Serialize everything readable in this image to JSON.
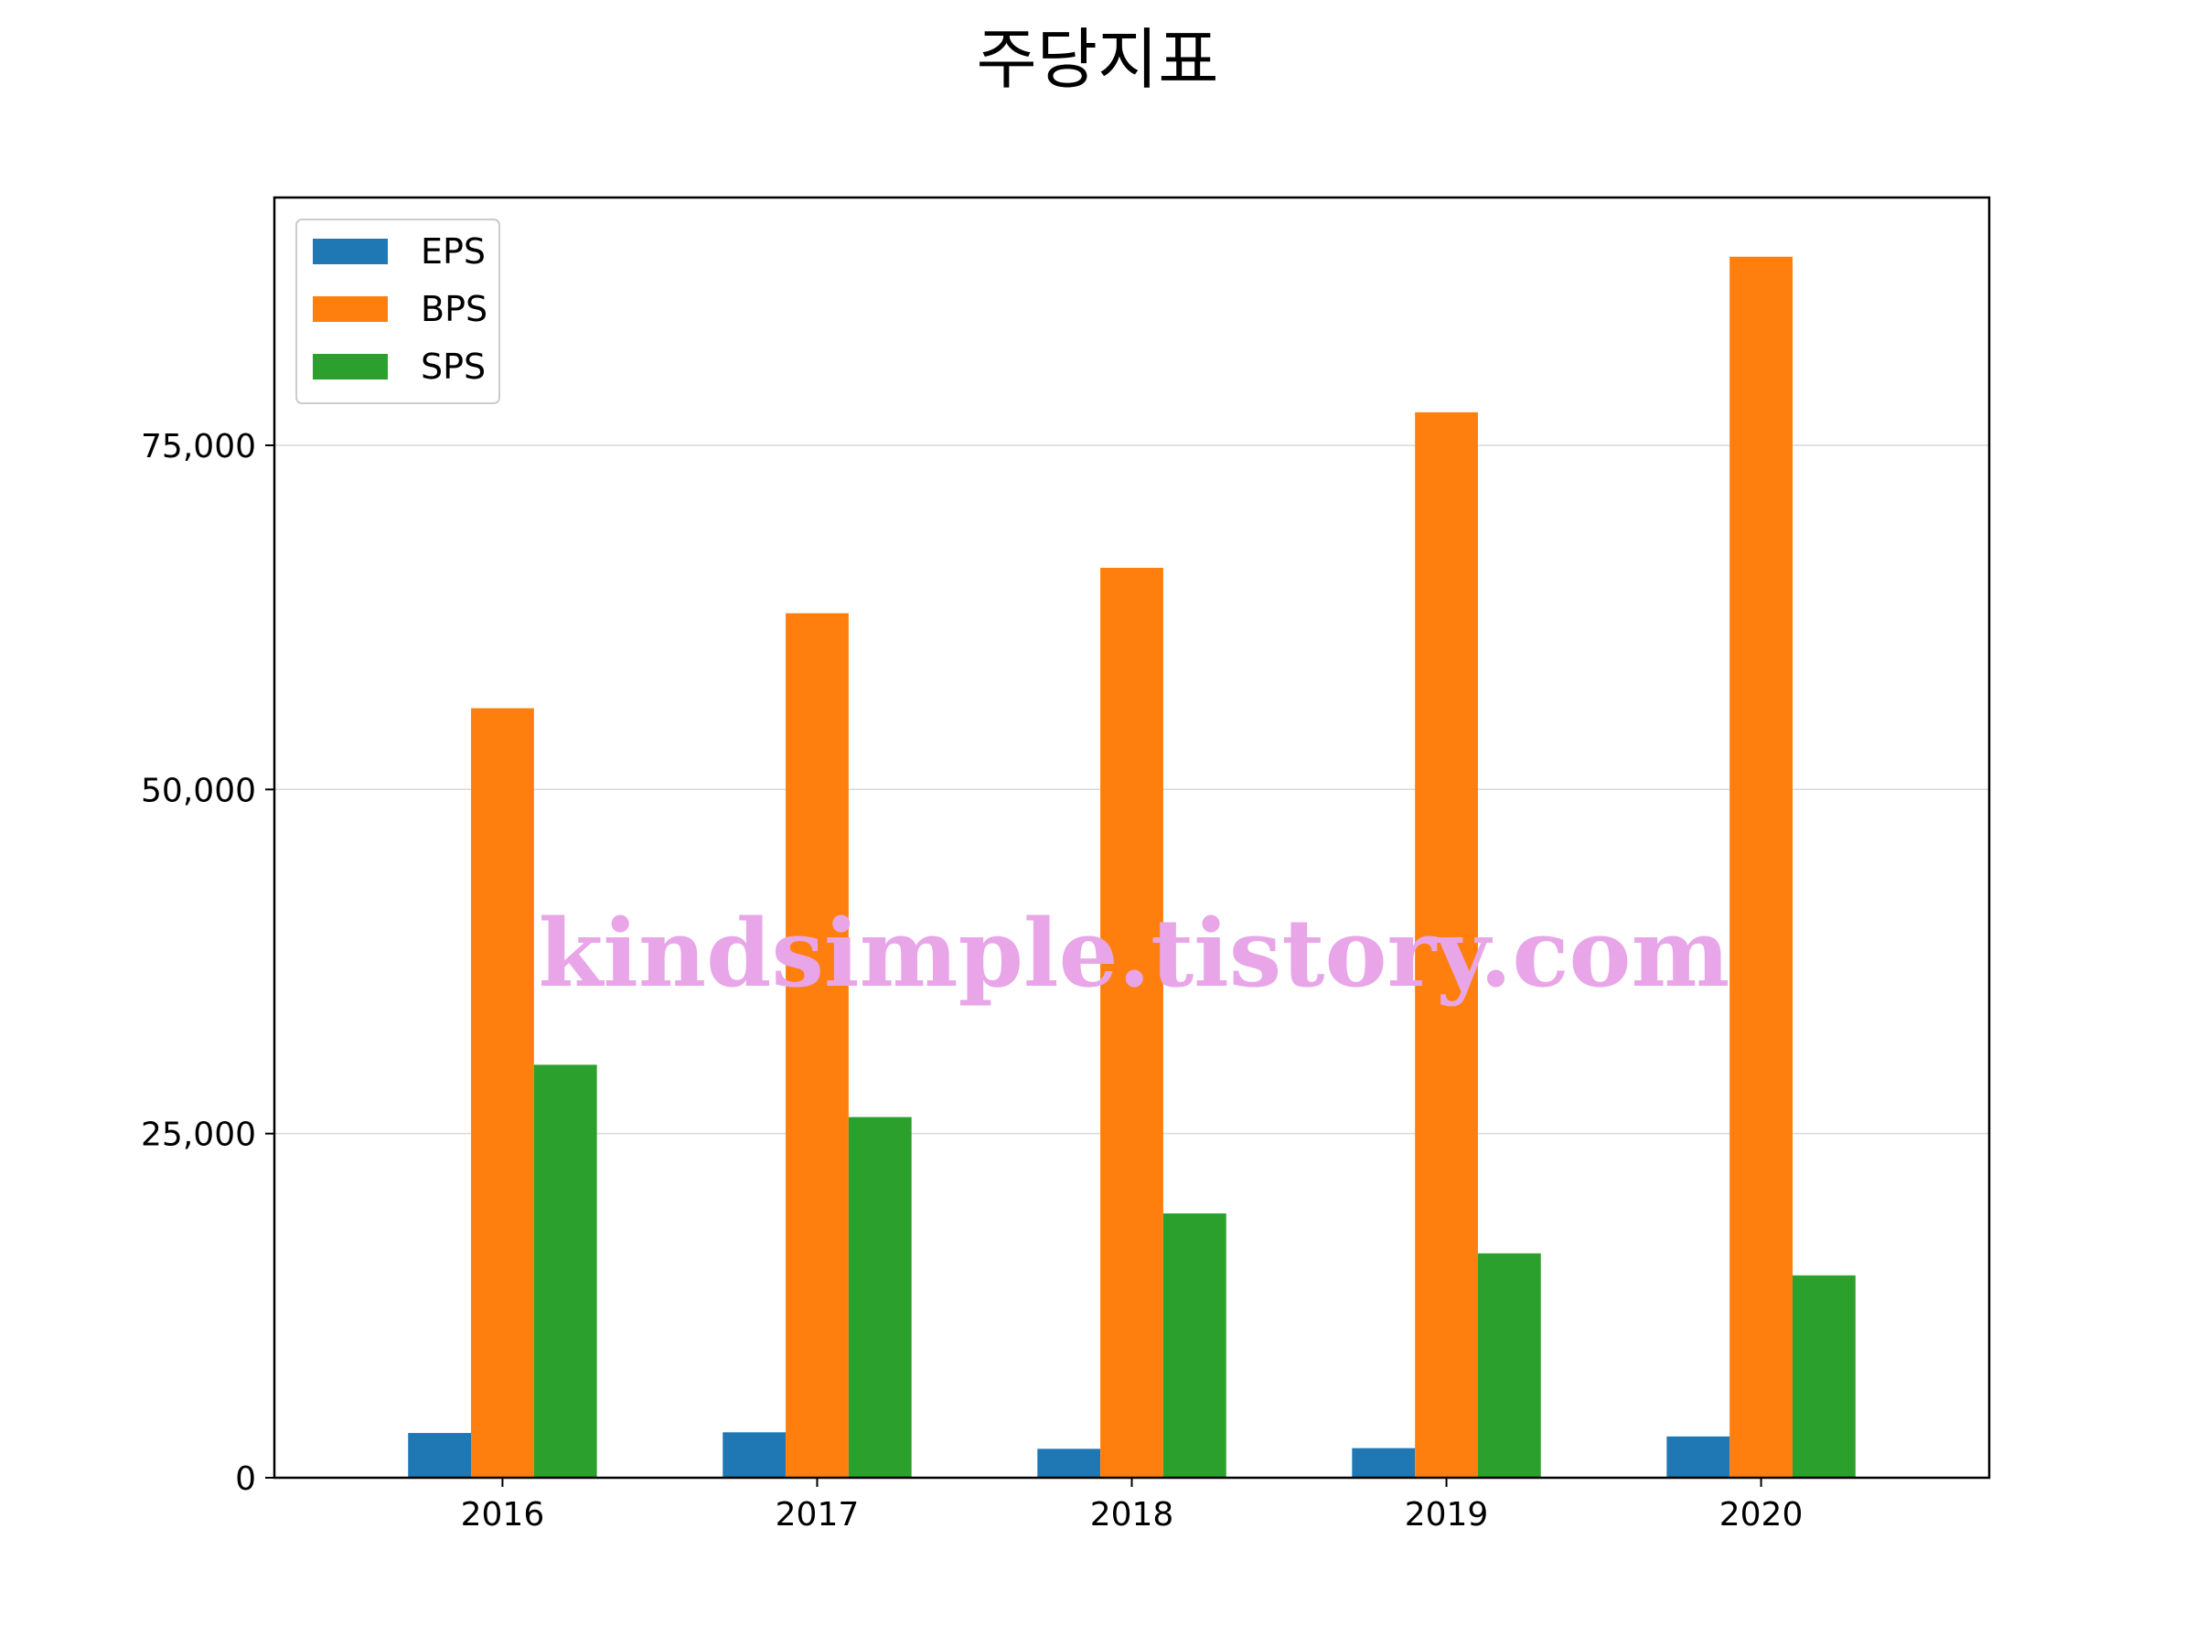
{
  "chart_data": {
    "type": "bar",
    "title": "주당지표",
    "xlabel": "",
    "ylabel": "",
    "categories": [
      "2016",
      "2017",
      "2018",
      "2019",
      "2020"
    ],
    "series": [
      {
        "name": "EPS",
        "color": "#1f77b4",
        "values": [
          3250,
          3300,
          2100,
          2150,
          3000
        ]
      },
      {
        "name": "BPS",
        "color": "#ff7f0e",
        "values": [
          55900,
          62800,
          66100,
          77400,
          88700
        ]
      },
      {
        "name": "SPS",
        "color": "#2ca02c",
        "values": [
          30000,
          26200,
          19200,
          16300,
          14700
        ]
      }
    ],
    "ylim": [
      0,
      93000
    ],
    "yticks": [
      0,
      25000,
      50000,
      75000
    ],
    "ytick_labels": [
      "0",
      "25,000",
      "50,000",
      "75,000"
    ],
    "grid": "horizontal",
    "legend_position": "upper-left",
    "watermark": "kindsimple.tistory.com"
  }
}
